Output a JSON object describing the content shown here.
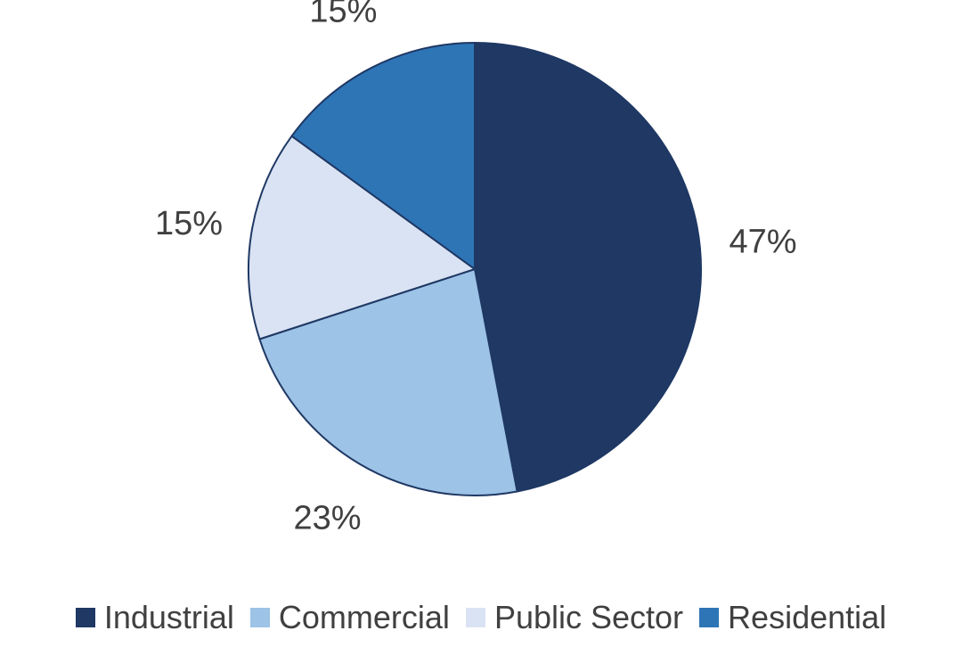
{
  "chart_data": {
    "type": "pie",
    "title": "",
    "slices": [
      {
        "name": "Industrial",
        "value": 47,
        "label": "47%",
        "color": "#1f3864"
      },
      {
        "name": "Commercial",
        "value": 23,
        "label": "23%",
        "color": "#9dc3e6"
      },
      {
        "name": "Public Sector",
        "value": 15,
        "label": "15%",
        "color": "#dae3f3"
      },
      {
        "name": "Residential",
        "value": 15,
        "label": "15%",
        "color": "#2e75b6"
      }
    ],
    "start_angle_deg": 0,
    "direction": "clockwise",
    "legend_position": "bottom"
  }
}
